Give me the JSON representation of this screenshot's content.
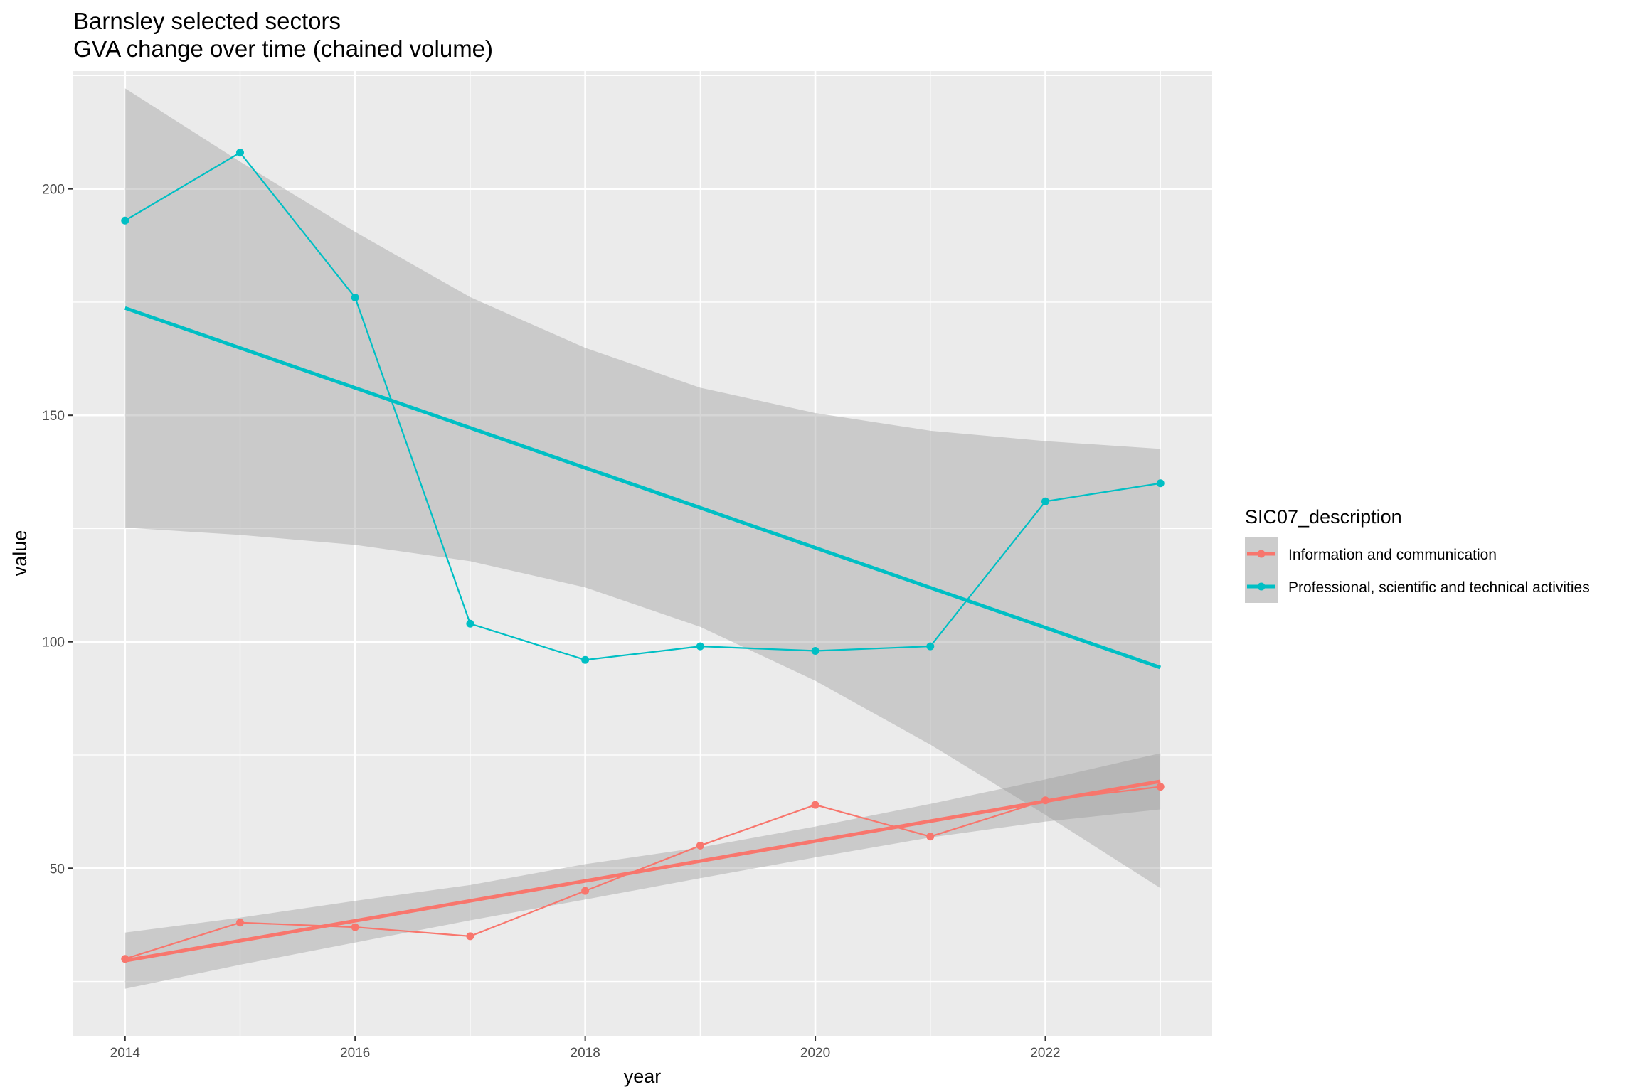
{
  "chart_data": {
    "type": "line",
    "title": "Barnsley selected sectors",
    "subtitle": "GVA change over time (chained volume)",
    "xlabel": "year",
    "ylabel": "value",
    "xlim": [
      2013.55,
      2023.45
    ],
    "ylim": [
      13,
      226
    ],
    "x_ticks": [
      2014,
      2016,
      2018,
      2020,
      2022
    ],
    "y_ticks": [
      50,
      100,
      150,
      200
    ],
    "grid": true,
    "legend": {
      "title": "SIC07_description",
      "placement": "right"
    },
    "series": [
      {
        "name": "Information and communication",
        "color": "#F8766D",
        "x": [
          2014,
          2015,
          2016,
          2017,
          2018,
          2019,
          2020,
          2021,
          2022,
          2023
        ],
        "values": [
          30,
          38,
          37,
          35,
          45,
          55,
          64,
          57,
          65,
          68
        ],
        "trend": {
          "start": 29.6,
          "end": 69.2
        },
        "ci_lower": [
          23.4,
          28.7,
          33.6,
          38.5,
          43.1,
          47.8,
          52.4,
          56.8,
          60.3,
          63.0
        ],
        "ci_upper": [
          35.8,
          39.1,
          42.8,
          46.3,
          50.9,
          54.6,
          59.2,
          64.2,
          69.6,
          75.4
        ]
      },
      {
        "name": "Professional, scientific and technical activities",
        "color": "#00BFC4",
        "x": [
          2014,
          2015,
          2016,
          2017,
          2018,
          2019,
          2020,
          2021,
          2022,
          2023
        ],
        "values": [
          193,
          208,
          176,
          104,
          96,
          99,
          98,
          99,
          131,
          135
        ],
        "trend": {
          "start": 173.7,
          "end": 94.3
        },
        "ci_lower": [
          125.2,
          123.6,
          121.4,
          117.8,
          112.0,
          103.3,
          91.4,
          77.3,
          61.8,
          45.6
        ],
        "ci_upper": [
          222.2,
          206.0,
          190.5,
          176.1,
          164.9,
          156.1,
          150.5,
          146.6,
          144.3,
          142.6
        ]
      }
    ]
  },
  "colors": {
    "panel": "#EBEBEB",
    "grid_major": "#FFFFFF",
    "ribbon": "#999999"
  }
}
